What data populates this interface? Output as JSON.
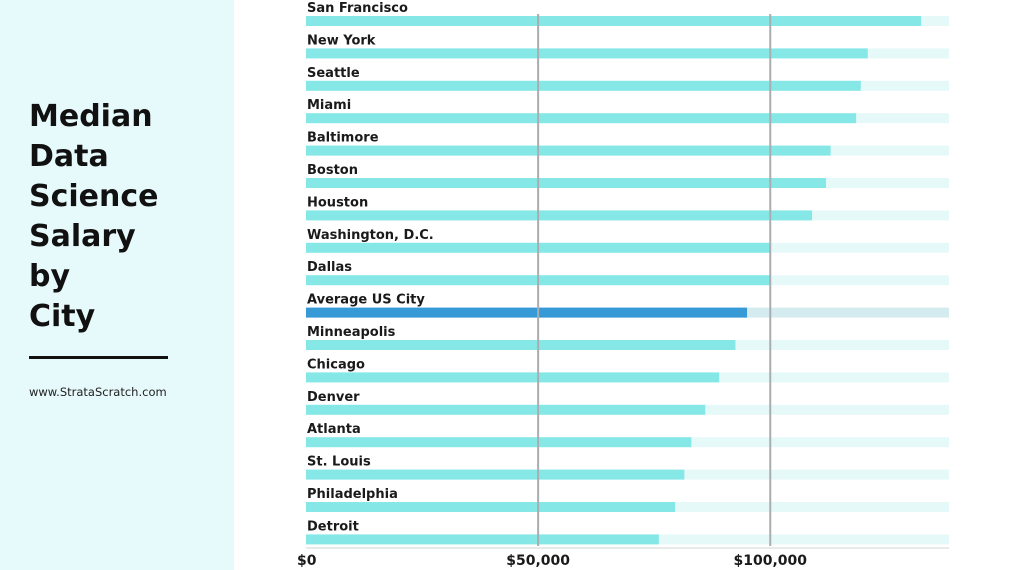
{
  "sidebar": {
    "title": "Median\nData\nScience\nSalary\nby\nCity",
    "source": "www.StrataScratch.com"
  },
  "chart_data": {
    "type": "bar",
    "orientation": "horizontal",
    "categories": [
      "San Francisco",
      "New York",
      "Seattle",
      "Miami",
      "Baltimore",
      "Boston",
      "Houston",
      "Washington, D.C.",
      "Dallas",
      "Average US City",
      "Minneapolis",
      "Chicago",
      "Denver",
      "Atlanta",
      "St. Louis",
      "Philadelphia",
      "Detroit"
    ],
    "values": [
      132500,
      121000,
      119500,
      118500,
      113000,
      112000,
      109000,
      100000,
      100000,
      95000,
      92500,
      89000,
      86000,
      83000,
      81500,
      79500,
      76000
    ],
    "xlim": [
      0,
      138500
    ],
    "xticks": [
      0,
      50000,
      100000
    ],
    "xtick_labels": [
      "$0",
      "$50,000",
      "$100,000"
    ],
    "highlight_category": "Average US City",
    "colors": {
      "bar": "#86e8e6",
      "highlight": "#3799d6",
      "track": "#e6f9f9",
      "highlight_track": "#d4ecef",
      "gridline": "#a9adb0",
      "sidebar": "#e6f9fb"
    }
  }
}
